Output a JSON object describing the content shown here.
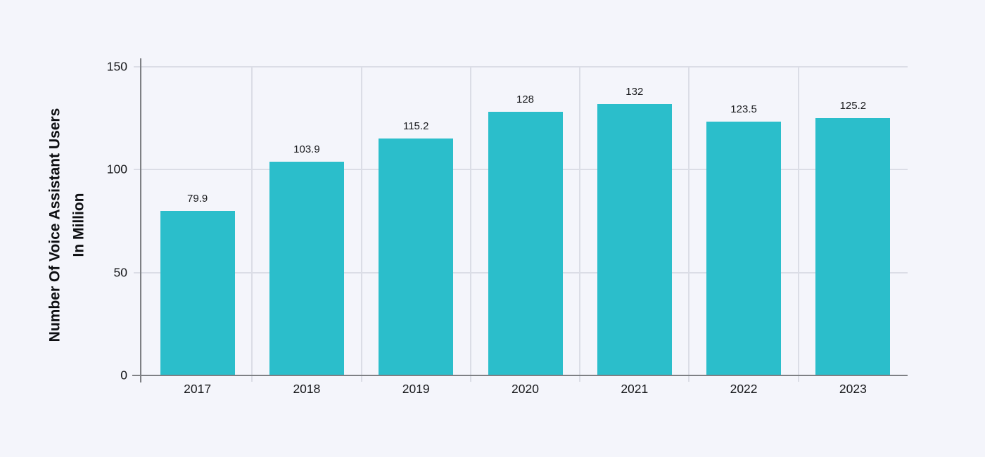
{
  "chart_data": {
    "type": "bar",
    "title": "",
    "xlabel": "",
    "ylabel": "Number Of Voice Assistant Users In Million",
    "ylabel_lines": [
      "Number Of Voice Assistant Users",
      "In Million"
    ],
    "categories": [
      "2017",
      "2018",
      "2019",
      "2020",
      "2021",
      "2022",
      "2023"
    ],
    "values": [
      79.9,
      103.9,
      115.2,
      128,
      132,
      123.5,
      125.2
    ],
    "value_labels": [
      "79.9",
      "103.9",
      "115.2",
      "128",
      "132",
      "123.5",
      "125.2"
    ],
    "ylim": [
      0,
      150
    ],
    "yticks": [
      0,
      50,
      100,
      150
    ],
    "ytick_labels": [
      "0",
      "50",
      "100",
      "150"
    ],
    "grid": "horizontal gridlines at yticks, vertical gridlines at category boundaries",
    "legend": "none",
    "colors": {
      "background": "#f4f5fb",
      "bar_fill": "#2bbecb",
      "gridline": "#dbdde6",
      "axis_line": "#7e8084",
      "tick_text": "#17181b",
      "value_text": "#1a1b1e",
      "title_text": "#0e0f12"
    }
  }
}
